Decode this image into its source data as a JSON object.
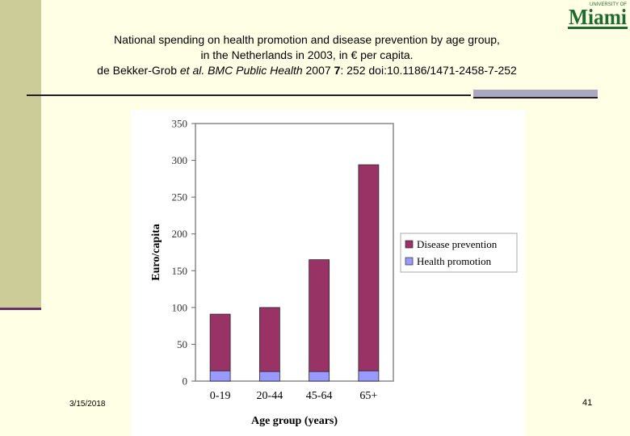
{
  "slide": {
    "title_line1": "National spending on health promotion and disease prevention by age group,",
    "title_line2": "in the Netherlands in 2003, in € per capita.",
    "title_line3_authors": "de Bekker-Grob ",
    "title_line3_etal": "et al.",
    "title_line3_journal": " BMC Public Health",
    "title_line3_year": " 2007 ",
    "title_line3_volume": "7",
    "title_line3_rest": ": 252   doi:10.1186/1471-2458-7-252",
    "date": "3/15/2018",
    "page_number": "41",
    "logo_top_text": "UNIVERSITY OF",
    "logo_main_text": "Miami"
  },
  "colors": {
    "background": "#FFFFE5",
    "left_band": "#CCCC99",
    "accent_line": "#663366",
    "disease_prevention": "#993366",
    "health_promotion": "#9999FF",
    "logo_green": "#1E6B2E"
  },
  "chart_data": {
    "type": "bar",
    "stacked": true,
    "categories": [
      "0-19",
      "20-44",
      "45-64",
      "65+"
    ],
    "series": [
      {
        "name": "Health promotion",
        "values": [
          14,
          13,
          13,
          14
        ]
      },
      {
        "name": "Disease prevention",
        "values": [
          77,
          87,
          152,
          280
        ]
      }
    ],
    "xlabel": "Age group (years)",
    "ylabel": "Euro/capita",
    "ylim": [
      0,
      350
    ],
    "yticks": [
      0,
      50,
      100,
      150,
      200,
      250,
      300,
      350
    ],
    "legend": [
      "Disease prevention",
      "Health promotion"
    ],
    "legend_position": "right",
    "grid": false
  }
}
